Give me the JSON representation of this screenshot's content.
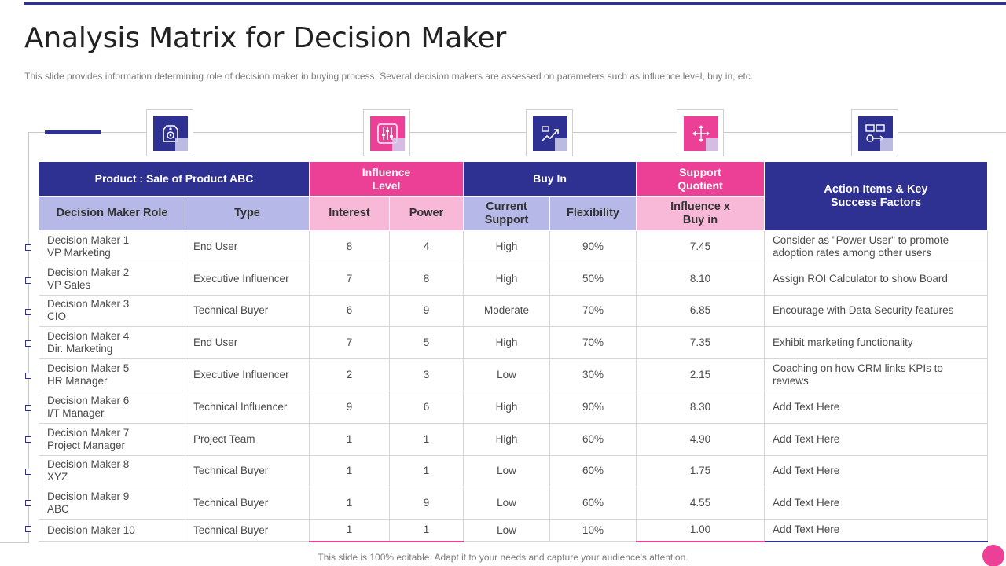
{
  "slide": {
    "title": "Analysis Matrix for Decision Maker",
    "subtitle": "This slide provides  information  determining  role  of decision maker in buying process. Several  decision makers are assessed on parameters  such as influence  level,  buy in, etc.",
    "footer": "This slide is 100% editable. Adapt it to your needs and capture your audience's attention."
  },
  "icons": [
    "price-tag-icon",
    "equalizer-sliders-icon",
    "handshake-growth-icon",
    "move-arrows-icon",
    "strategy-plan-icon"
  ],
  "colors": {
    "navy": "#2e3192",
    "pink": "#ec3f96",
    "lavender": "#b6b9e8",
    "light_pink": "#f8b9d8"
  },
  "table": {
    "groups": {
      "product": "Product : Sale of Product ABC",
      "influence_level": "Influence\nLevel",
      "buy_in": "Buy In",
      "support_quotient": "Support\nQuotient",
      "action_items": "Action Items & Key\nSuccess Factors"
    },
    "columns": {
      "role": "Decision Maker Role",
      "type": "Type",
      "interest": "Interest",
      "power": "Power",
      "current_support": "Current\nSupport",
      "flexibility": "Flexibility",
      "influence_x_buyin": "Influence  x\nBuy in"
    },
    "rows": [
      {
        "role": "Decision Maker 1\nVP Marketing",
        "type": "End User",
        "interest": "8",
        "power": "4",
        "support": "High",
        "flexibility": "90%",
        "quotient": "7.45",
        "action": "Consider  as  \"Power User\" to promote\nadoption rates among  other users"
      },
      {
        "role": "Decision Maker 2\nVP Sales",
        "type": "Executive Influencer",
        "interest": "7",
        "power": "8",
        "support": "High",
        "flexibility": "50%",
        "quotient": "8.10",
        "action": "Assign ROI Calculator to show Board"
      },
      {
        "role": "Decision Maker 3\nCIO",
        "type": "Technical Buyer",
        "interest": "6",
        "power": "9",
        "support": "Moderate",
        "flexibility": "70%",
        "quotient": "6.85",
        "action": "Encourage  with Data Security features"
      },
      {
        "role": "Decision Maker 4\nDir. Marketing",
        "type": "End User",
        "interest": "7",
        "power": "5",
        "support": "High",
        "flexibility": "70%",
        "quotient": "7.35",
        "action": "Exhibit marketing functionality"
      },
      {
        "role": "Decision Maker 5\nHR Manager",
        "type": "Executive Influencer",
        "interest": "2",
        "power": "3",
        "support": "Low",
        "flexibility": "30%",
        "quotient": "2.15",
        "action": "Coaching  on how CRM links KPIs to reviews"
      },
      {
        "role": "Decision Maker 6\nI/T Manager",
        "type": "Technical Influencer",
        "interest": "9",
        "power": "6",
        "support": "High",
        "flexibility": "90%",
        "quotient": "8.30",
        "action": "Add Text Here"
      },
      {
        "role": "Decision Maker 7\nProject Manager",
        "type": "Project Team",
        "interest": "1",
        "power": "1",
        "support": "High",
        "flexibility": "60%",
        "quotient": "4.90",
        "action": "Add Text Here"
      },
      {
        "role": "Decision Maker 8\nXYZ",
        "type": "Technical Buyer",
        "interest": "1",
        "power": "1",
        "support": "Low",
        "flexibility": "60%",
        "quotient": "1.75",
        "action": "Add Text Here"
      },
      {
        "role": "Decision Maker 9\nABC",
        "type": "Technical Buyer",
        "interest": "1",
        "power": "9",
        "support": "Low",
        "flexibility": "60%",
        "quotient": "4.55",
        "action": "Add Text Here"
      },
      {
        "role": "Decision Maker 10",
        "type": "Technical Buyer",
        "interest": "1",
        "power": "1",
        "support": "Low",
        "flexibility": "10%",
        "quotient": "1.00",
        "action": "Add Text Here"
      }
    ]
  }
}
